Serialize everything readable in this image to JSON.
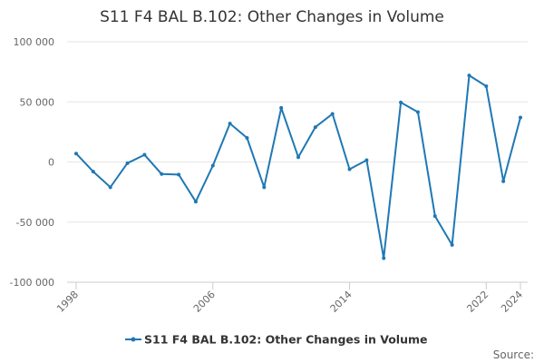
{
  "chart_data": {
    "type": "line",
    "title": "S11 F4 BAL B.102: Other Changes in Volume",
    "xlabel": "",
    "ylabel": "",
    "ylim": [
      -100000,
      100000
    ],
    "xlim": [
      1998,
      2024
    ],
    "grid": true,
    "legend_position": "bottom",
    "x_tick_labels": [
      "1998",
      "2006",
      "2014",
      "2022",
      "2024"
    ],
    "y_tick_labels": [
      "100 000",
      "50 000",
      "0",
      "-50 000",
      "-100 000"
    ],
    "y_tick_values": [
      100000,
      50000,
      0,
      -50000,
      -100000
    ],
    "x_tick_values": [
      1998,
      2006,
      2014,
      2022,
      2024
    ],
    "series": [
      {
        "name": "S11 F4 BAL B.102: Other Changes in Volume",
        "color": "#1f78b4",
        "x": [
          1998,
          1999,
          2000,
          2001,
          2002,
          2003,
          2004,
          2005,
          2006,
          2007,
          2008,
          2009,
          2010,
          2011,
          2012,
          2013,
          2014,
          2015,
          2016,
          2017,
          2018,
          2019,
          2020,
          2021,
          2022,
          2023,
          2024
        ],
        "values": [
          7000,
          -8000,
          -21000,
          -1000,
          6000,
          -10000,
          -10500,
          -33000,
          -3000,
          32000,
          20000,
          -21000,
          45000,
          4000,
          29000,
          40000,
          -6000,
          1500,
          -80000,
          49500,
          41500,
          -45000,
          -69000,
          72000,
          63000,
          -16000,
          37000
        ]
      }
    ],
    "source_label": "Source:"
  }
}
